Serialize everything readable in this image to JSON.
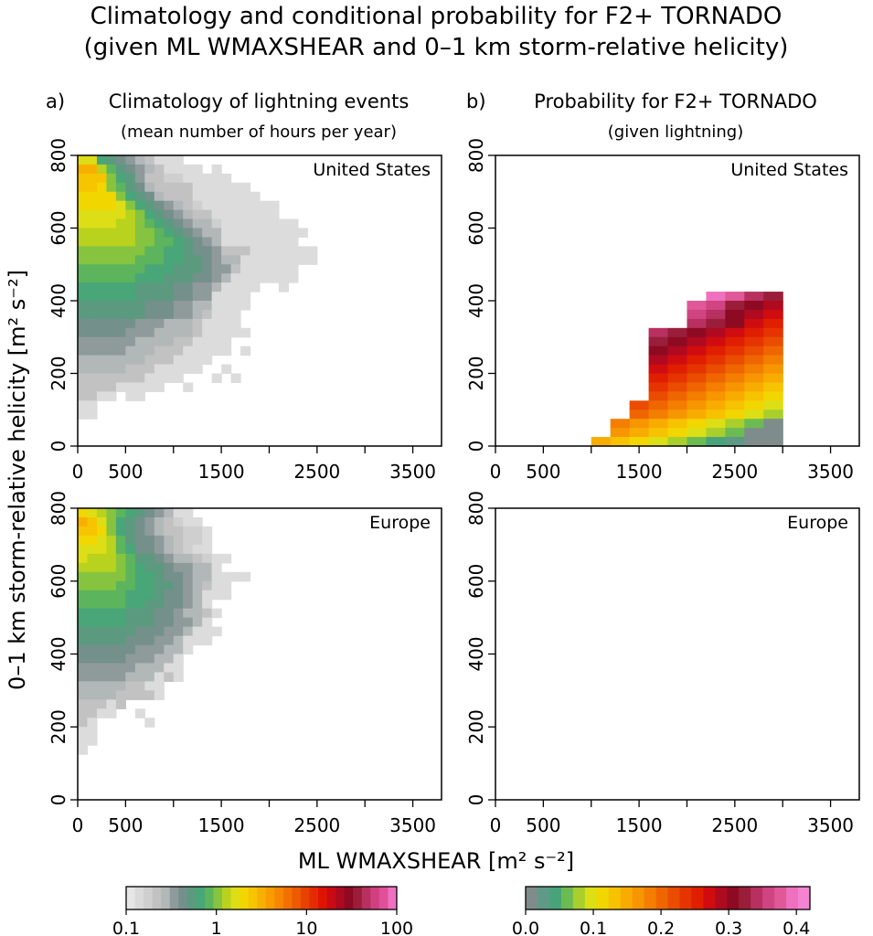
{
  "figure": {
    "title_line1": "Climatology and conditional probability for F2+ TORNADO",
    "title_line2": "(given ML WMAXSHEAR and 0–1 km storm-relative helicity)",
    "ylabel": "0–1 km storm-relative helicity [m² s⁻²]",
    "xlabel": "ML WMAXSHEAR [m² s⁻²]"
  },
  "colors": {
    "palette_lightning": [
      "#e6e6e6",
      "#dadada",
      "#cfcfcf",
      "#c2c2c2",
      "#b2b8b8",
      "#8f9a9a",
      "#74908a",
      "#5c9a80",
      "#48a678",
      "#5cb45c",
      "#86c440",
      "#b8d21e",
      "#dede16",
      "#f2d600",
      "#f7c400",
      "#f8b000",
      "#f89c00",
      "#f78600",
      "#f37000",
      "#ee5a00",
      "#e84200",
      "#e52c00",
      "#df1400",
      "#c90a14",
      "#ad0a22",
      "#8e0a22",
      "#9a1e3a",
      "#b83060",
      "#d04080",
      "#e05098",
      "#f070c0"
    ],
    "palette_probability": [
      "#7f8c8c",
      "#5e9a86",
      "#48a37a",
      "#6cbb52",
      "#a8cf2c",
      "#dcde16",
      "#f2d600",
      "#f7c200",
      "#f8ac00",
      "#f79600",
      "#f47e00",
      "#ef6600",
      "#ea4c00",
      "#e53400",
      "#e01e00",
      "#d00c10",
      "#b00a20",
      "#8e0a22",
      "#9a1e3a",
      "#b83060",
      "#d04482",
      "#e05898",
      "#f070c0",
      "#f484d0"
    ]
  },
  "chart_data": [
    {
      "panel": "a-us",
      "type": "heatmap",
      "label": "a)",
      "title": "Climatology of lightning events",
      "subtitle": "(mean number of hours per year)",
      "region": "United States",
      "xlim": [
        0,
        3800
      ],
      "ylim": [
        0,
        800
      ],
      "xticks": [
        0,
        500,
        1500,
        2500,
        3500
      ],
      "xminor": [
        1000,
        2000,
        3000
      ],
      "yticks": [
        0,
        200,
        400,
        600,
        800
      ],
      "bin_x": 100,
      "bin_y": 25,
      "colorscale": "lightning",
      "value_meaning": "colour class index 0-30 on log scale 0.1-100 hours per year",
      "grid": [
        "BB765432xxx.....................",
        "EEA865432xxxx.x.................",
        "DDD97642211xxxxx................",
        "DDC986532222xxxxxx..............",
        "CCCC97653222xxxxxxx.............",
        "CCCCB97654321xxxxxxxx...........",
        "BBBBBA97654322xxxxxxx...........",
        "BBBBAA987654331xxxxxxxx.........",
        "AAAAAA998765433xxxxxxxxx........",
        "AAAAAA998876543xxxxxxxx.........",
        "999999988776554222xxxxxxx.......",
        "99999988877665433xxxxxxxx.......",
        "88888887776665442xxxxxx.........",
        "8888887776665543xxxxxxx.........",
        "777777666655443xxxx..x..........",
        "77777766665544xxxx..............",
        "66666665554433xxxx..............",
        "66666665554432xxx...............",
        "5555554443332xxxx...............",
        "5555544433332xxxxx..............",
        "444444333322xxxx................",
        "44444333222xxxxx.x..............",
        "3333333222xxxx..................",
        "33333222xxxxx..x................",
        "2222222xxxx...x.x...............",
        "2222xxxxx..x....................",
        "22xx.xx.........................",
        "xx..............................",
        "xx..............................",
        "................................",
        "................................",
        "................................"
      ]
    },
    {
      "panel": "b-us",
      "type": "heatmap",
      "label": "b)",
      "title": "Probability for F2+ TORNADO",
      "subtitle": "(given lightning)",
      "region": "United States",
      "xlim": [
        0,
        3800
      ],
      "ylim": [
        0,
        800
      ],
      "xticks": [
        0,
        500,
        1500,
        2500,
        3500
      ],
      "xminor": [
        1000,
        2000,
        3000
      ],
      "yticks": [
        0,
        200,
        400,
        600,
        800
      ],
      "bin_x": 200,
      "bin_y": 25,
      "colorscale": "probability",
      "value_meaning": "probability in steps of 0.0175, 0 to 0.42",
      "grid": [
        "...............",
        "...............",
        "...............",
        "...............",
        "...............",
        "...............",
        "...............",
        "...............",
        "...............",
        "...............",
        "...............",
        "...............",
        "...............",
        "...............",
        "...............",
        "...........LKIH",
        "..........KJHGF",
        "..........JIGFE",
        "..........IHGED",
        "........IHGFEDC",
        "........HGFEDCB",
        "........GFEDCBA",
        "........FEDCBA9",
        "........EDCBA98",
        "........DCBA987",
        "........CBA9876",
        "........BA98765",
        ".......BA987654",
        ".......A9876543",
        "......98765432_",
        "......8765432__",
        ".....76543210__"
      ]
    },
    {
      "panel": "a-eu",
      "type": "heatmap",
      "label": "",
      "title": "",
      "subtitle": "",
      "region": "Europe",
      "xlim": [
        0,
        3800
      ],
      "ylim": [
        0,
        800
      ],
      "xticks": [
        0,
        500,
        1500,
        2500,
        3500
      ],
      "xminor": [
        1000,
        2000,
        3000
      ],
      "yticks": [
        0,
        200,
        400,
        600,
        800
      ],
      "bin_x": 100,
      "bin_y": 25,
      "colorscale": "lightning",
      "value_meaning": "colour class index 0-30 on log scale 0.1-100 hours per year",
      "grid": [
        "CBA9876543xx.......",
        "EDB97654321xx......",
        "DDC9765432211x.....",
        "CCBA865543211x.....",
        "BBBA875543210x.....",
        "BAAA9866543321xx...",
        "AAAA9876654433x....",
        "99999877655433xxxx.",
        "99998877665432xx...",
        "8888877765543xxx...",
        "8888877665543x.....",
        "77777666554332x....",
        "7777766655443x.....",
        "666666555443xxx....",
        "66666555443xxx.....",
        "55555544433x.......",
        "5555544433x........",
        "444444333xx........",
        "44444333x2x........",
        "3333322xx..........",
        "33332222x..........",
        "222x2..............",
        "22xx..x............",
        "2x.....x...........",
        "xx.................",
        "xx.................",
        "x..................",
        "...................",
        "...................",
        "...................",
        "...................",
        "..................."
      ]
    },
    {
      "panel": "b-eu",
      "type": "heatmap",
      "label": "",
      "title": "",
      "subtitle": "",
      "region": "Europe",
      "xlim": [
        0,
        3800
      ],
      "ylim": [
        0,
        800
      ],
      "xticks": [
        0,
        500,
        1500,
        2500,
        3500
      ],
      "xminor": [
        1000,
        2000,
        3000
      ],
      "yticks": [
        0,
        200,
        400,
        600,
        800
      ],
      "bin_x": 200,
      "bin_y": 25,
      "colorscale": "probability",
      "value_meaning": "probability in steps of 0.0175, 0 to 0.42",
      "grid": [
        "...............",
        "...............",
        "...............",
        "...............",
        "...............",
        "...............",
        "...............",
        "...............",
        "...............",
        "...............",
        "...............",
        "...............",
        "...............",
        "...............",
        "...............",
        "...............",
        "...............",
        "...............",
        "...............",
        "...............",
        "...............",
        "...............",
        "...............",
        "...............",
        "...............",
        "...............",
        "...............",
        "...............",
        "...............",
        "...............",
        "...............",
        "..............."
      ]
    }
  ],
  "colorbars": [
    {
      "name": "lightning-colorbar",
      "scale": "log",
      "range": [
        0.1,
        100
      ],
      "tick_labels": [
        "0.1",
        "1",
        "10",
        "100"
      ],
      "tick_values": [
        0.1,
        1,
        10,
        100
      ]
    },
    {
      "name": "probability-colorbar",
      "scale": "linear",
      "range": [
        0.0,
        0.42
      ],
      "tick_labels": [
        "0.0",
        "0.1",
        "0.2",
        "0.3",
        "0.4"
      ],
      "tick_values": [
        0.0,
        0.1,
        0.2,
        0.3,
        0.4
      ]
    }
  ]
}
